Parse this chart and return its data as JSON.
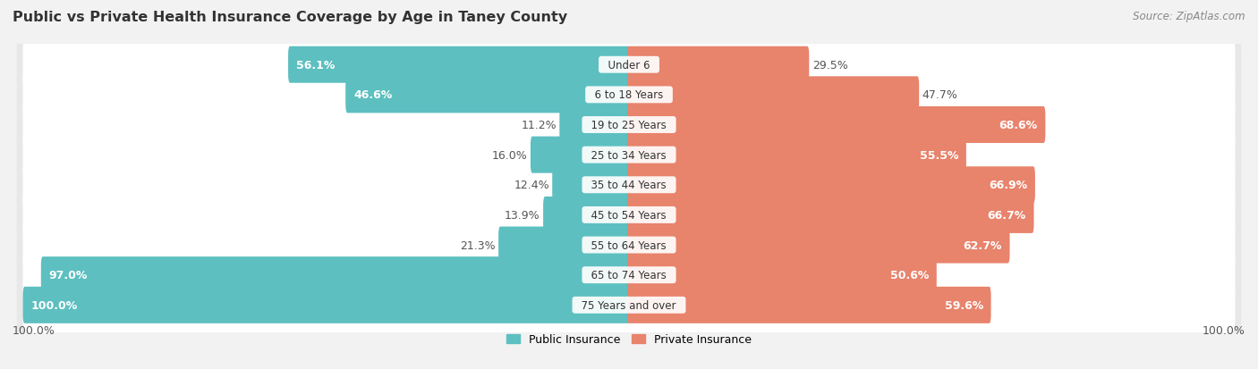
{
  "title": "Public vs Private Health Insurance Coverage by Age in Taney County",
  "source": "Source: ZipAtlas.com",
  "categories": [
    "Under 6",
    "6 to 18 Years",
    "19 to 25 Years",
    "25 to 34 Years",
    "35 to 44 Years",
    "45 to 54 Years",
    "55 to 64 Years",
    "65 to 74 Years",
    "75 Years and over"
  ],
  "public_values": [
    56.1,
    46.6,
    11.2,
    16.0,
    12.4,
    13.9,
    21.3,
    97.0,
    100.0
  ],
  "private_values": [
    29.5,
    47.7,
    68.6,
    55.5,
    66.9,
    66.7,
    62.7,
    50.6,
    59.6
  ],
  "public_color": "#5dbfc0",
  "private_color": "#e8836c",
  "private_color_light": "#f0a898",
  "bg_color": "#f2f2f2",
  "row_bg_color": "#e8e8e8",
  "row_white_color": "#ffffff",
  "bar_height": 0.62,
  "title_fontsize": 11.5,
  "value_fontsize": 9,
  "source_fontsize": 8.5,
  "legend_fontsize": 9,
  "cat_fontsize": 8.5,
  "max_val": 100.0,
  "footer_label": "100.0%",
  "pub_inside_threshold": 25,
  "priv_inside_threshold": 10
}
